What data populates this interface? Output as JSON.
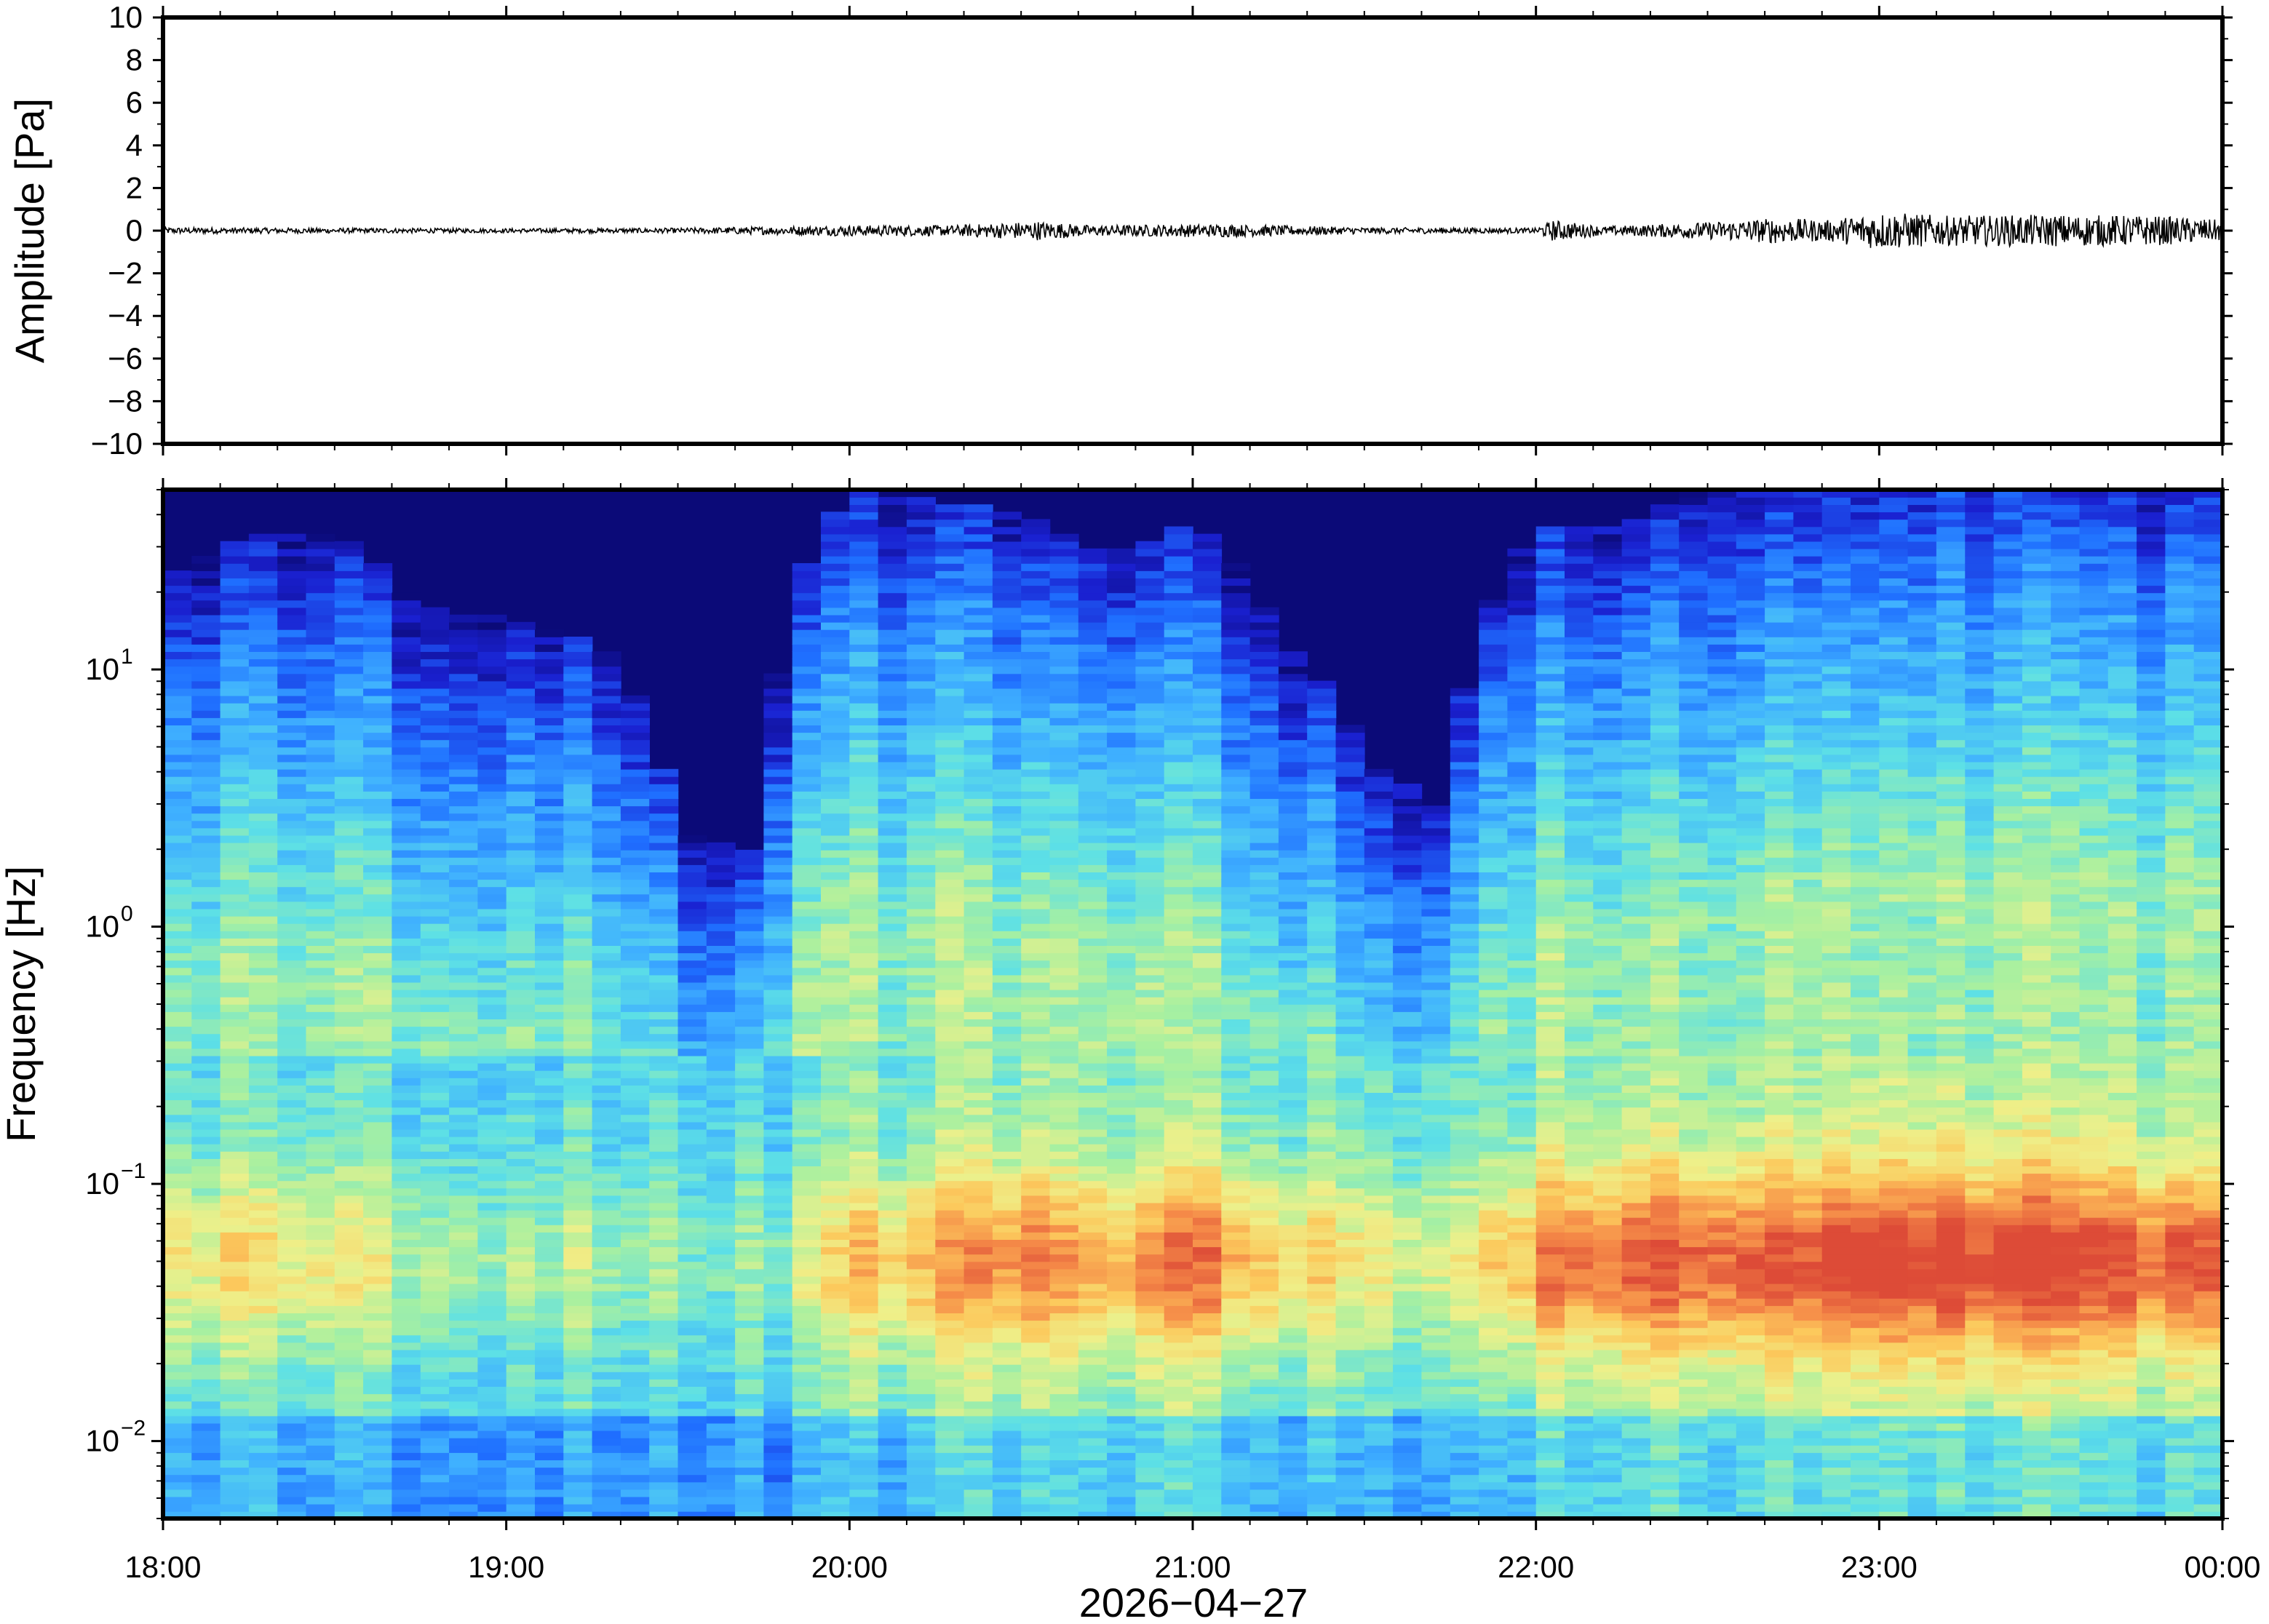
{
  "chart_data": [
    {
      "type": "line",
      "panel": "waveform",
      "ylabel": "Amplitude [Pa]",
      "ylim": [
        -10,
        10
      ],
      "yticks": [
        10,
        8,
        6,
        4,
        2,
        0,
        -2,
        -4,
        -6,
        -8,
        -10
      ],
      "ytick_labels": [
        "10",
        "8",
        "6",
        "4",
        "2",
        "0",
        "−2",
        "−4",
        "−6",
        "−8",
        "−10"
      ],
      "x_range_hours": [
        18,
        24
      ],
      "series": [
        {
          "envelope_hours": [
            18.0,
            18.5,
            19.0,
            19.5,
            19.8,
            20.0,
            20.3,
            20.55,
            20.7,
            21.0,
            21.1,
            21.5,
            22.0,
            22.05,
            22.2,
            22.5,
            22.7,
            22.85,
            23.0,
            23.2,
            23.5,
            23.8,
            24.0
          ],
          "envelope_amplitude": [
            0.15,
            0.12,
            0.1,
            0.12,
            0.2,
            0.25,
            0.25,
            0.45,
            0.25,
            0.3,
            0.3,
            0.15,
            0.12,
            0.5,
            0.2,
            0.4,
            0.6,
            0.5,
            0.9,
            0.7,
            0.75,
            0.7,
            0.5
          ],
          "color": "#000000"
        }
      ]
    },
    {
      "type": "heatmap",
      "panel": "spectrogram",
      "ylabel": "Frequency [Hz]",
      "yscale": "log",
      "ylim": [
        0.005,
        50
      ],
      "ytick_labels": [
        {
          "base": "10",
          "exp": "1"
        },
        {
          "base": "10",
          "exp": "0"
        },
        {
          "base": "10",
          "exp": "−1"
        },
        {
          "base": "10",
          "exp": "−2"
        }
      ],
      "x_tick_labels": [
        "18:00",
        "19:00",
        "20:00",
        "21:00",
        "22:00",
        "23:00",
        "00:00"
      ],
      "xlabel": "2026−04−27",
      "colormap": [
        "#0b0a78",
        "#1a20d0",
        "#1f6fff",
        "#3fb0ff",
        "#5de0e6",
        "#a8f0a0",
        "#eef08a",
        "#fcc95c",
        "#f58a48",
        "#dd4b37"
      ],
      "time_hours": [
        18.0,
        18.25,
        18.5,
        18.75,
        19.0,
        19.25,
        19.5,
        19.75,
        20.0,
        20.25,
        20.5,
        20.75,
        21.0,
        21.25,
        21.5,
        21.75,
        22.0,
        22.25,
        22.5,
        22.75,
        23.0,
        23.25,
        23.5,
        23.75,
        24.0
      ],
      "upper_cutoff_hz": [
        10,
        15,
        15,
        8,
        7,
        6,
        1.0,
        0.9,
        22,
        20,
        18,
        12,
        17,
        6,
        2,
        1.2,
        16,
        16,
        24,
        24,
        30,
        32,
        32,
        30,
        28
      ],
      "low_band_energy": [
        0.45,
        0.5,
        0.45,
        0.35,
        0.3,
        0.3,
        0.2,
        0.2,
        0.55,
        0.6,
        0.75,
        0.55,
        0.8,
        0.55,
        0.45,
        0.35,
        0.7,
        0.8,
        0.85,
        0.8,
        0.95,
        0.9,
        0.9,
        0.85,
        0.8
      ]
    }
  ]
}
